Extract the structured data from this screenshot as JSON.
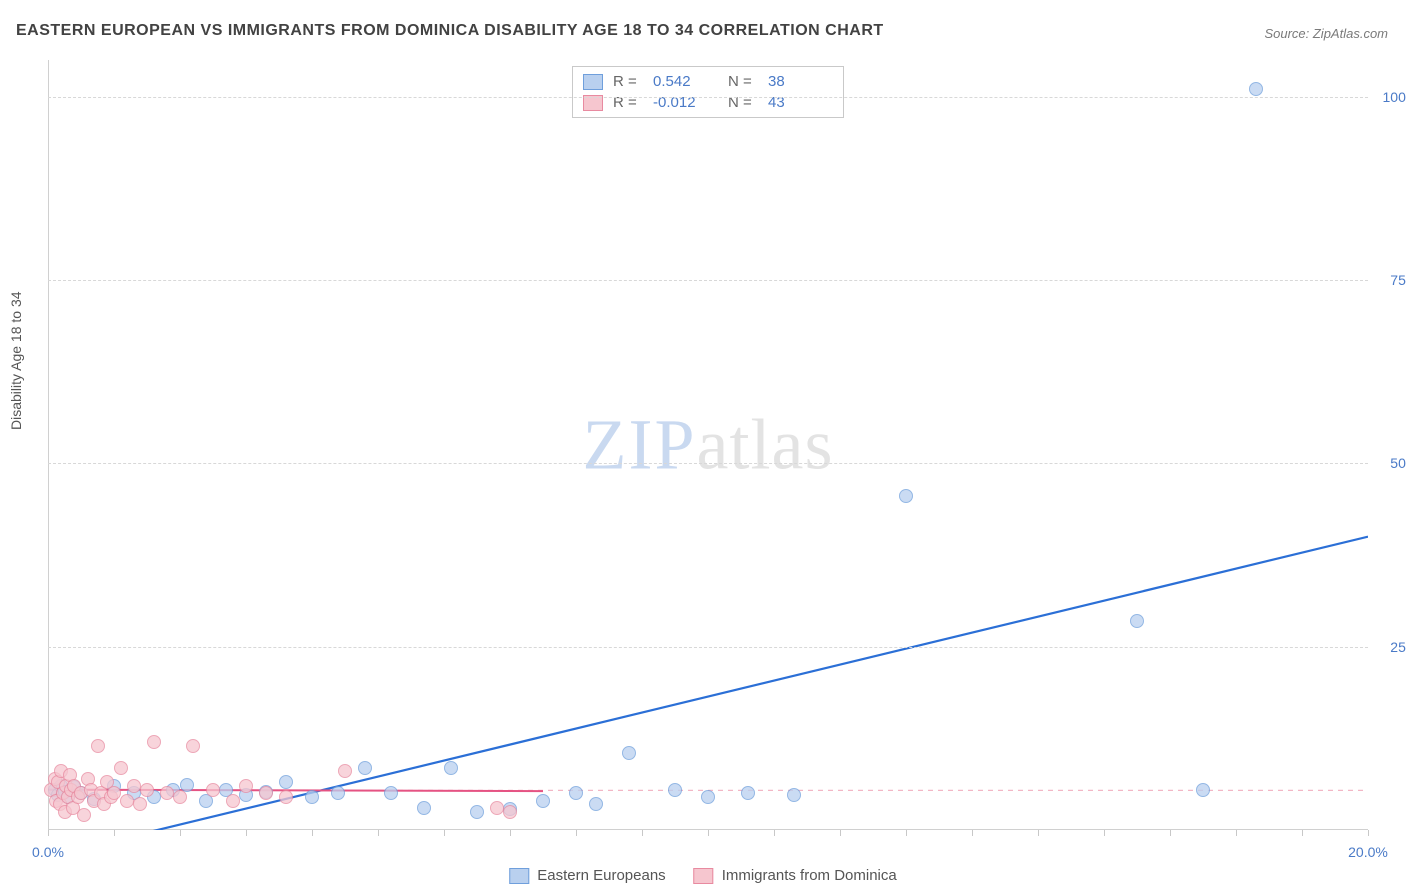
{
  "title": "EASTERN EUROPEAN VS IMMIGRANTS FROM DOMINICA DISABILITY AGE 18 TO 34 CORRELATION CHART",
  "source": "Source: ZipAtlas.com",
  "y_axis_label": "Disability Age 18 to 34",
  "watermark": {
    "part1": "ZIP",
    "part2": "atlas"
  },
  "chart": {
    "type": "scatter",
    "background_color": "#ffffff",
    "grid_color": "#d8d8d8",
    "axis_label_color": "#4a7ac7",
    "xlim": [
      0,
      20
    ],
    "ylim": [
      0,
      105
    ],
    "x_ticks": [
      0,
      5,
      10,
      15,
      20
    ],
    "x_tick_labels": [
      "0.0%",
      "",
      "",
      "",
      "20.0%"
    ],
    "x_minor_tick_step": 1.0,
    "y_ticks": [
      25,
      50,
      75,
      100
    ],
    "y_tick_labels": [
      "25.0%",
      "50.0%",
      "75.0%",
      "100.0%"
    ],
    "series": [
      {
        "name": "Eastern Europeans",
        "fill_color": "#b9d0ef",
        "stroke_color": "#6f9fdc",
        "marker_radius": 7,
        "trend": {
          "x1": 1.2,
          "y1": -1.0,
          "x2": 20.0,
          "y2": 40.0,
          "color": "#2b6fd6",
          "width": 2.2,
          "dash": "none"
        },
        "stats": {
          "R": "0.542",
          "N": "38"
        },
        "points": [
          [
            0.1,
            5.5
          ],
          [
            0.15,
            4.8
          ],
          [
            0.2,
            6.0
          ],
          [
            0.25,
            5.2
          ],
          [
            0.3,
            4.5
          ],
          [
            0.4,
            5.8
          ],
          [
            0.5,
            5.0
          ],
          [
            0.7,
            4.2
          ],
          [
            1.0,
            6.0
          ],
          [
            1.3,
            5.0
          ],
          [
            1.6,
            4.5
          ],
          [
            1.9,
            5.5
          ],
          [
            2.1,
            6.2
          ],
          [
            2.4,
            4.0
          ],
          [
            2.7,
            5.5
          ],
          [
            3.0,
            4.8
          ],
          [
            3.3,
            5.2
          ],
          [
            3.6,
            6.5
          ],
          [
            4.0,
            4.5
          ],
          [
            4.4,
            5.0
          ],
          [
            4.8,
            8.5
          ],
          [
            5.2,
            5.0
          ],
          [
            5.7,
            3.0
          ],
          [
            6.1,
            8.5
          ],
          [
            6.5,
            2.5
          ],
          [
            7.0,
            2.8
          ],
          [
            7.5,
            4.0
          ],
          [
            8.0,
            5.0
          ],
          [
            8.3,
            3.5
          ],
          [
            8.8,
            10.5
          ],
          [
            9.5,
            5.5
          ],
          [
            10.0,
            4.5
          ],
          [
            10.6,
            5.0
          ],
          [
            11.3,
            4.8
          ],
          [
            13.0,
            45.5
          ],
          [
            16.5,
            28.5
          ],
          [
            17.5,
            5.5
          ],
          [
            18.3,
            101.0
          ]
        ]
      },
      {
        "name": "Immigrants from Dominica",
        "fill_color": "#f6c6cf",
        "stroke_color": "#e88aa0",
        "marker_radius": 7,
        "trend": {
          "x1": 0.0,
          "y1": 5.5,
          "x2": 7.5,
          "y2": 5.3,
          "color": "#e55383",
          "width": 2.0,
          "dash": "none"
        },
        "ref_line": {
          "y": 5.4,
          "color": "#f2b6c5",
          "width": 1.2,
          "dash": "5,5"
        },
        "stats": {
          "R": "-0.012",
          "N": "43"
        },
        "points": [
          [
            0.05,
            5.5
          ],
          [
            0.1,
            7.0
          ],
          [
            0.12,
            4.0
          ],
          [
            0.15,
            6.5
          ],
          [
            0.18,
            3.5
          ],
          [
            0.2,
            8.0
          ],
          [
            0.22,
            5.0
          ],
          [
            0.25,
            2.5
          ],
          [
            0.28,
            6.0
          ],
          [
            0.3,
            4.5
          ],
          [
            0.33,
            7.5
          ],
          [
            0.35,
            5.5
          ],
          [
            0.38,
            3.0
          ],
          [
            0.4,
            6.0
          ],
          [
            0.45,
            4.5
          ],
          [
            0.5,
            5.0
          ],
          [
            0.55,
            2.0
          ],
          [
            0.6,
            7.0
          ],
          [
            0.65,
            5.5
          ],
          [
            0.7,
            4.0
          ],
          [
            0.75,
            11.5
          ],
          [
            0.8,
            5.0
          ],
          [
            0.85,
            3.5
          ],
          [
            0.9,
            6.5
          ],
          [
            0.95,
            4.5
          ],
          [
            1.0,
            5.0
          ],
          [
            1.1,
            8.5
          ],
          [
            1.2,
            4.0
          ],
          [
            1.3,
            6.0
          ],
          [
            1.4,
            3.5
          ],
          [
            1.5,
            5.5
          ],
          [
            1.6,
            12.0
          ],
          [
            1.8,
            5.0
          ],
          [
            2.0,
            4.5
          ],
          [
            2.2,
            11.5
          ],
          [
            2.5,
            5.5
          ],
          [
            2.8,
            4.0
          ],
          [
            3.0,
            6.0
          ],
          [
            3.3,
            5.0
          ],
          [
            3.6,
            4.5
          ],
          [
            4.5,
            8.0
          ],
          [
            6.8,
            3.0
          ],
          [
            7.0,
            2.5
          ]
        ]
      }
    ]
  },
  "stats_legend_labels": {
    "R": "R =",
    "N": "N ="
  },
  "bottom_legend": [
    {
      "label": "Eastern Europeans",
      "fill": "#b9d0ef",
      "stroke": "#6f9fdc"
    },
    {
      "label": "Immigrants from Dominica",
      "fill": "#f6c6cf",
      "stroke": "#e88aa0"
    }
  ]
}
